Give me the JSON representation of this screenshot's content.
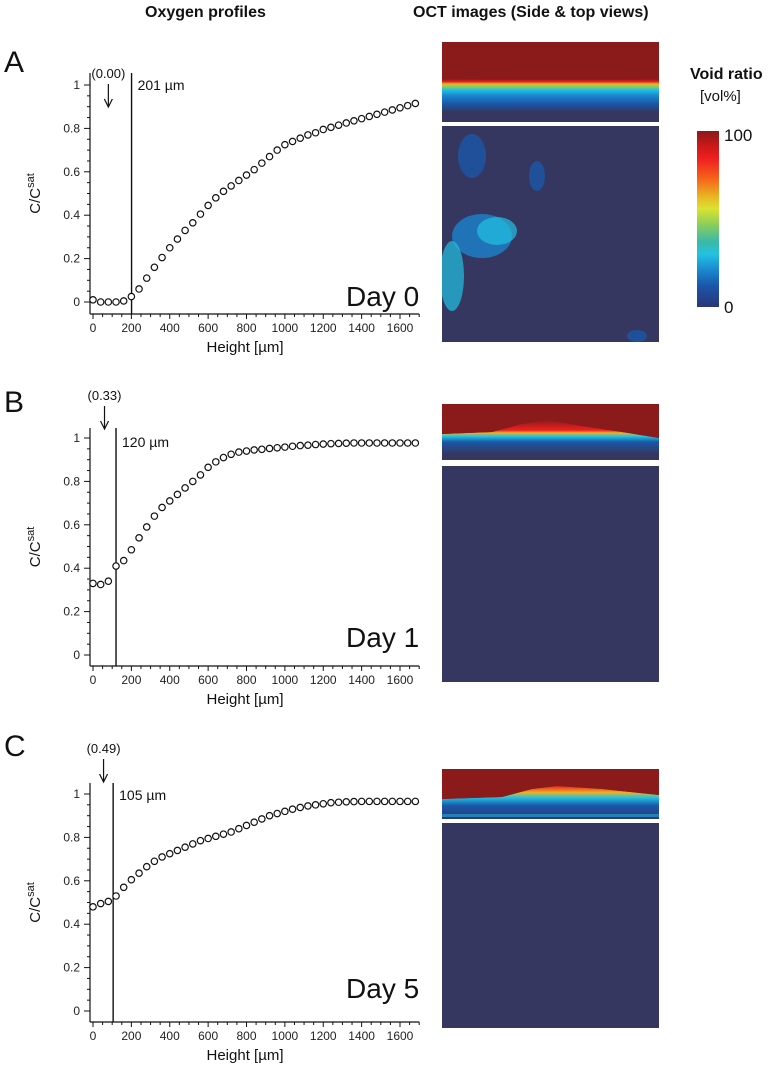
{
  "titles": {
    "left": "Oxygen profiles",
    "right": "OCT images (Side & top views)"
  },
  "colorbar": {
    "title": "Void ratio",
    "unit": "[vol%]",
    "max_label": "100",
    "min_label": "0",
    "range": [
      0,
      100
    ],
    "colormap": "jet"
  },
  "oct_images": [
    {
      "panel": "A",
      "side_view": "side-view-day-0",
      "top_view": "top-view-day-0"
    },
    {
      "panel": "B",
      "side_view": "side-view-day-1",
      "top_view": "top-view-day-1"
    },
    {
      "panel": "C",
      "side_view": "side-view-day-5",
      "top_view": "top-view-day-5"
    }
  ],
  "chart_data": [
    {
      "type": "scatter",
      "panel": "A",
      "title": "Day 0",
      "xlabel": "Height [µm]",
      "ylabel": "C/C^sat",
      "xlim": [
        0,
        1700
      ],
      "ylim": [
        -0.05,
        1.05
      ],
      "xticks": [
        0,
        200,
        400,
        600,
        800,
        1000,
        1200,
        1400,
        1600
      ],
      "yticks": [
        0,
        0.2,
        0.4,
        0.6,
        0.8,
        1
      ],
      "ytick_labels": [
        "0",
        "0.2",
        "0.4",
        "0.6",
        "0.8",
        "1"
      ],
      "vline_x": 201,
      "vline_label": "201 µm",
      "arrow_x": 80,
      "arrow_label": "(0.00)",
      "x": [
        0,
        40,
        80,
        120,
        160,
        200,
        240,
        280,
        320,
        360,
        400,
        440,
        480,
        520,
        560,
        600,
        640,
        680,
        720,
        760,
        800,
        840,
        880,
        920,
        960,
        1000,
        1040,
        1080,
        1120,
        1160,
        1200,
        1240,
        1280,
        1320,
        1360,
        1400,
        1440,
        1480,
        1520,
        1560,
        1600,
        1640,
        1680
      ],
      "y": [
        0.01,
        0.0,
        0.0,
        0.0,
        0.005,
        0.025,
        0.06,
        0.11,
        0.16,
        0.205,
        0.25,
        0.29,
        0.33,
        0.365,
        0.405,
        0.445,
        0.48,
        0.51,
        0.535,
        0.56,
        0.585,
        0.61,
        0.64,
        0.67,
        0.7,
        0.725,
        0.74,
        0.755,
        0.77,
        0.78,
        0.795,
        0.805,
        0.815,
        0.825,
        0.835,
        0.845,
        0.855,
        0.865,
        0.875,
        0.885,
        0.895,
        0.905,
        0.915
      ]
    },
    {
      "type": "scatter",
      "panel": "B",
      "title": "Day 1",
      "xlabel": "Height [µm]",
      "ylabel": "C/C^sat",
      "xlim": [
        0,
        1700
      ],
      "ylim": [
        -0.05,
        1.05
      ],
      "xticks": [
        0,
        200,
        400,
        600,
        800,
        1000,
        1200,
        1400,
        1600
      ],
      "yticks": [
        0,
        0.2,
        0.4,
        0.6,
        0.8,
        1
      ],
      "ytick_labels": [
        "0",
        "0.2",
        "0.4",
        "0.6",
        "0.8",
        "1"
      ],
      "vline_x": 120,
      "vline_label": "120 µm",
      "arrow_x": 60,
      "arrow_label": "(0.33)",
      "x": [
        0,
        40,
        80,
        120,
        160,
        200,
        240,
        280,
        320,
        360,
        400,
        440,
        480,
        520,
        560,
        600,
        640,
        680,
        720,
        760,
        800,
        840,
        880,
        920,
        960,
        1000,
        1040,
        1080,
        1120,
        1160,
        1200,
        1240,
        1280,
        1320,
        1360,
        1400,
        1440,
        1480,
        1520,
        1560,
        1600,
        1640,
        1680
      ],
      "y": [
        0.33,
        0.325,
        0.34,
        0.41,
        0.435,
        0.485,
        0.54,
        0.59,
        0.64,
        0.68,
        0.71,
        0.74,
        0.77,
        0.8,
        0.83,
        0.865,
        0.89,
        0.91,
        0.925,
        0.935,
        0.94,
        0.945,
        0.948,
        0.952,
        0.955,
        0.958,
        0.962,
        0.965,
        0.967,
        0.97,
        0.972,
        0.974,
        0.975,
        0.976,
        0.977,
        0.977,
        0.977,
        0.977,
        0.977,
        0.977,
        0.977,
        0.977,
        0.977
      ]
    },
    {
      "type": "scatter",
      "panel": "C",
      "title": "Day 5",
      "xlabel": "Height [µm]",
      "ylabel": "C/C^sat",
      "xlim": [
        0,
        1700
      ],
      "ylim": [
        -0.05,
        1.05
      ],
      "xticks": [
        0,
        200,
        400,
        600,
        800,
        1000,
        1200,
        1400,
        1600
      ],
      "yticks": [
        0,
        0.2,
        0.4,
        0.6,
        0.8,
        1
      ],
      "ytick_labels": [
        "0",
        "0.2",
        "0.4",
        "0.6",
        "0.8",
        "1"
      ],
      "vline_x": 105,
      "vline_label": "105 µm",
      "arrow_x": 55,
      "arrow_label": "(0.49)",
      "x": [
        0,
        40,
        80,
        120,
        160,
        200,
        240,
        280,
        320,
        360,
        400,
        440,
        480,
        520,
        560,
        600,
        640,
        680,
        720,
        760,
        800,
        840,
        880,
        920,
        960,
        1000,
        1040,
        1080,
        1120,
        1160,
        1200,
        1240,
        1280,
        1320,
        1360,
        1400,
        1440,
        1480,
        1520,
        1560,
        1600,
        1640,
        1680
      ],
      "y": [
        0.48,
        0.495,
        0.505,
        0.53,
        0.57,
        0.605,
        0.635,
        0.665,
        0.69,
        0.71,
        0.725,
        0.74,
        0.755,
        0.77,
        0.785,
        0.795,
        0.805,
        0.815,
        0.825,
        0.84,
        0.855,
        0.87,
        0.885,
        0.9,
        0.91,
        0.92,
        0.93,
        0.938,
        0.945,
        0.95,
        0.955,
        0.96,
        0.962,
        0.964,
        0.965,
        0.966,
        0.966,
        0.966,
        0.966,
        0.966,
        0.966,
        0.966,
        0.966
      ]
    }
  ]
}
